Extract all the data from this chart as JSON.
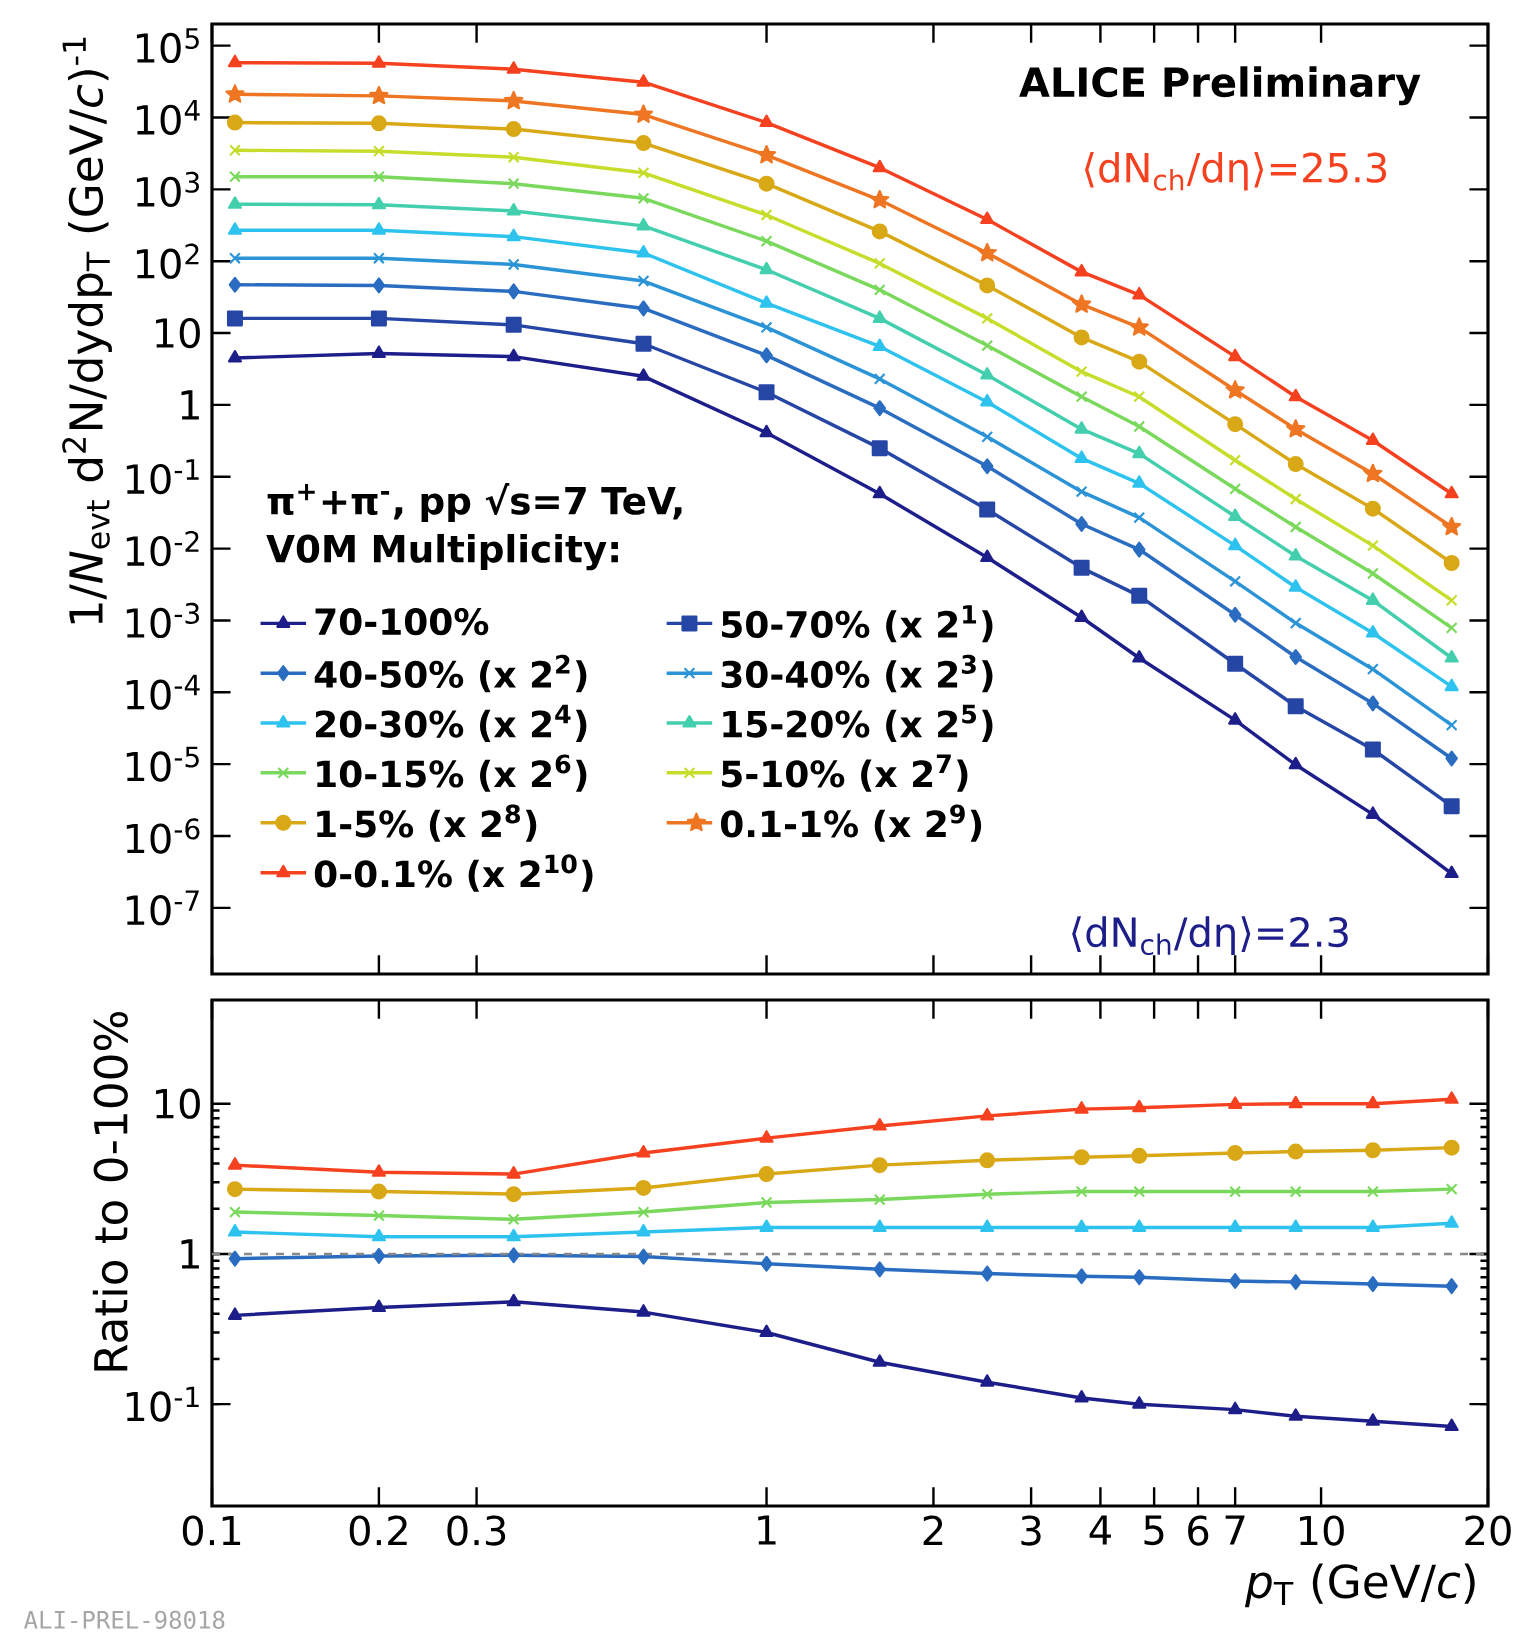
{
  "chart_data": [
    {
      "type": "line",
      "ylabel": "1/*N*$_{evt}$ d$^{2}$N/dydp$_{T}$ (GeV/*c*)$^{-1}$",
      "legend_title": "π$^{+}$+π$^{-}$, pp √s=7 TeV, V0M Multiplicity:",
      "legend": "bottom left",
      "log": "xy",
      "tick_labels": "y",
      "annotations": [
        "ALICE Preliminary",
        "⟨dN$_{ch}$/dη⟩=25.3",
        "⟨dN$_{ch}$/dη⟩=2.3"
      ],
      "xlim": [
        0.1,
        20
      ],
      "ylim": [
        1.2e-08,
        200000.0
      ],
      "xticks": [
        0.1,
        0.2,
        0.3,
        1,
        2,
        3,
        4,
        5,
        6,
        7,
        10,
        20
      ],
      "yticks": [
        {
          "value": 100000.0,
          "label": "10$^{5}$"
        },
        {
          "value": 10000.0,
          "label": "10$^{4}$"
        },
        {
          "value": 1000.0,
          "label": "10$^{3}$"
        },
        {
          "value": 100,
          "label": "10$^{2}$"
        },
        10,
        1,
        {
          "value": 0.1,
          "label": "10$^{-1}$"
        },
        {
          "value": 0.01,
          "label": "10$^{-2}$"
        },
        {
          "value": 0.001,
          "label": "10$^{-3}$"
        },
        {
          "value": 0.0001,
          "label": "10$^{-4}$"
        },
        {
          "value": 1e-05,
          "label": "10$^{-5}$"
        },
        {
          "value": 1e-06,
          "label": "10$^{-6}$"
        },
        {
          "value": 1e-07,
          "label": "10$^{-7}$"
        }
      ],
      "x": [
        0.11,
        0.2,
        0.35,
        0.6,
        1.0,
        1.6,
        2.5,
        3.7,
        4.7,
        7.0,
        9.0,
        12.4,
        17.2
      ],
      "series": [
        {
          "name": "70-100%",
          "color": "#1e1e8a",
          "marker": "triangle",
          "values": [
            4.5,
            5.2,
            4.7,
            2.5,
            0.41,
            0.058,
            0.0075,
            0.0011,
            0.0003,
            4.1e-05,
            9.8e-06,
            2e-06,
            3e-07
          ]
        },
        {
          "name": "50-70% (x 2$^{1}$)",
          "color": "#2646a6",
          "marker": "square",
          "values": [
            16,
            16,
            13,
            7.1,
            1.5,
            0.25,
            0.035,
            0.0054,
            0.0022,
            0.00025,
            6.4e-05,
            1.6e-05,
            2.6e-06
          ]
        },
        {
          "name": "40-50% (x 2$^{2}$)",
          "color": "#2a6cc0",
          "marker": "diamond",
          "values": [
            47,
            46,
            38,
            22,
            4.9,
            0.9,
            0.14,
            0.022,
            0.0097,
            0.0012,
            0.00031,
            7e-05,
            1.2e-05
          ]
        },
        {
          "name": "30-40% (x 2$^{3}$)",
          "color": "#2b94d6",
          "marker": "cross",
          "values": [
            110,
            110,
            90,
            53,
            12,
            2.3,
            0.36,
            0.062,
            0.027,
            0.0035,
            0.00092,
            0.00021,
            3.5e-05
          ]
        },
        {
          "name": "20-30% (x 2$^{4}$)",
          "color": "#2ec3ee",
          "marker": "triangle",
          "values": [
            270,
            270,
            220,
            130,
            26,
            6.5,
            1.1,
            0.18,
            0.081,
            0.011,
            0.0029,
            0.00067,
            0.00012
          ]
        },
        {
          "name": "15-20% (x 2$^{5}$)",
          "color": "#43cfae",
          "marker": "triangle",
          "values": [
            620,
            610,
            500,
            310,
            76,
            16,
            2.6,
            0.46,
            0.21,
            0.028,
            0.0079,
            0.0019,
            0.0003
          ]
        },
        {
          "name": "10-15% (x 2$^{6}$)",
          "color": "#7ad95c",
          "marker": "cross",
          "values": [
            1500,
            1500,
            1200,
            750,
            190,
            40,
            6.7,
            1.3,
            0.5,
            0.068,
            0.02,
            0.0045,
            0.00079
          ]
        },
        {
          "name": "5-10% (x 2$^{7}$)",
          "color": "#c6dd2c",
          "marker": "cross",
          "values": [
            3500,
            3400,
            2800,
            1700,
            440,
            93,
            16,
            2.9,
            1.3,
            0.17,
            0.049,
            0.011,
            0.0019
          ]
        },
        {
          "name": "1-5% (x 2$^{8}$)",
          "color": "#d9a817",
          "marker": "circle",
          "values": [
            8500,
            8300,
            6900,
            4400,
            1200,
            260,
            46,
            8.7,
            4.0,
            0.54,
            0.15,
            0.036,
            0.0063
          ]
        },
        {
          "name": "0.1-1% (x 2$^{9}$)",
          "color": "#ee7622",
          "marker": "star",
          "values": [
            21000,
            20000,
            17000,
            11000,
            3000,
            710,
            130,
            25,
            12,
            1.6,
            0.46,
            0.11,
            0.02
          ]
        },
        {
          "name": "0-0.1% (x 2$^{10}$)",
          "color": "#f5411f",
          "marker": "triangle",
          "values": [
            58000,
            57000,
            47000,
            31000,
            8500,
            2000,
            380,
            71,
            34,
            4.7,
            1.3,
            0.32,
            0.058
          ]
        }
      ]
    },
    {
      "type": "line",
      "xlabel": "*p*$_{T}$ (GeV/*c*)",
      "ylabel": "Ratio to 0-100%",
      "log": "xy",
      "annotations": [
        "ALI-PREL-98018"
      ],
      "xlim": [
        0.1,
        20
      ],
      "ylim": [
        0.021,
        49
      ],
      "xticks": [
        0.1,
        0.2,
        0.3,
        1,
        2,
        3,
        4,
        5,
        6,
        7,
        10,
        20
      ],
      "yticks": [
        {
          "value": 0.1,
          "label": "10$^{-1}$"
        },
        1,
        10
      ],
      "ref_lines": [
        {
          "axis": "y",
          "value": 1,
          "color": "#888888",
          "line_style": "dashed"
        }
      ],
      "x": [
        0.11,
        0.2,
        0.35,
        0.6,
        1.0,
        1.6,
        2.5,
        3.7,
        4.7,
        7.0,
        9.0,
        12.4,
        17.2
      ],
      "series": [
        {
          "color": "#1e1e8a",
          "marker": "triangle",
          "values": [
            0.39,
            0.44,
            0.48,
            0.41,
            0.3,
            0.19,
            0.14,
            0.11,
            0.1,
            0.092,
            0.083,
            0.077,
            0.071
          ]
        },
        {
          "color": "#2a6cc0",
          "marker": "diamond",
          "values": [
            0.93,
            0.97,
            0.98,
            0.96,
            0.86,
            0.79,
            0.74,
            0.71,
            0.7,
            0.66,
            0.65,
            0.63,
            0.61
          ]
        },
        {
          "color": "#2ec3ee",
          "marker": "triangle",
          "values": [
            1.4,
            1.3,
            1.3,
            1.4,
            1.5,
            1.5,
            1.5,
            1.5,
            1.5,
            1.5,
            1.5,
            1.5,
            1.6
          ]
        },
        {
          "color": "#7ad95c",
          "marker": "cross",
          "values": [
            1.9,
            1.8,
            1.7,
            1.9,
            2.2,
            2.3,
            2.5,
            2.6,
            2.6,
            2.6,
            2.6,
            2.6,
            2.7
          ]
        },
        {
          "color": "#d9a817",
          "marker": "circle",
          "values": [
            2.7,
            2.6,
            2.5,
            2.75,
            3.4,
            3.9,
            4.2,
            4.4,
            4.5,
            4.7,
            4.8,
            4.9,
            5.1
          ]
        },
        {
          "color": "#f5411f",
          "marker": "triangle",
          "values": [
            3.9,
            3.5,
            3.4,
            4.7,
            5.9,
            7.1,
            8.3,
            9.2,
            9.4,
            9.9,
            10,
            10,
            10.7
          ]
        }
      ]
    }
  ]
}
